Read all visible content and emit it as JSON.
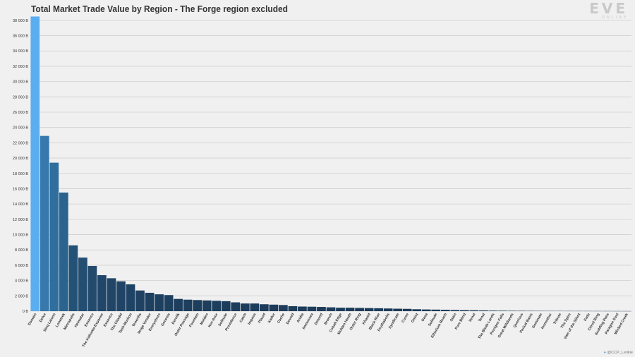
{
  "title": "Total Market Trade Value by Region - The Forge region excluded",
  "logo": {
    "main": "EVE",
    "sub": "ONLINE"
  },
  "credit": "@CCP_Lerikie",
  "chart_data": {
    "type": "bar",
    "title": "Total Market Trade Value by Region - The Forge region excluded",
    "xlabel": "",
    "ylabel": "",
    "ylim": [
      0,
      39000
    ],
    "yticks": [
      0,
      2000,
      4000,
      6000,
      8000,
      10000,
      12000,
      14000,
      16000,
      18000,
      20000,
      22000,
      24000,
      26000,
      28000,
      30000,
      32000,
      34000,
      36000,
      38000
    ],
    "ytick_labels": [
      "0 B",
      "2 000 B",
      "4 000 B",
      "6 000 B",
      "8 000 B",
      "10 000 B",
      "12 000 B",
      "14 000 B",
      "16 000 B",
      "18 000 B",
      "20 000 B",
      "22 000 B",
      "24 000 B",
      "26 000 B",
      "28 000 B",
      "30 000 B",
      "32 000 B",
      "34 000 B",
      "36 000 B",
      "38 000 B"
    ],
    "grid": true,
    "colors": {
      "max": "#5aaef0",
      "mid": "#2f6d9c",
      "min": "#1c3a58",
      "grid": "#cfcfcf",
      "tick_text": "#333333"
    },
    "categories": [
      "Domain",
      "Delve",
      "Sinq Laison",
      "Lonetrek",
      "Metropolis",
      "Heimatar",
      "Essence",
      "The Kalevala Expanse",
      "Essence",
      "The Citadel",
      "Tash-Murkon",
      "Tenerifis",
      "Verge Vendor",
      "Everyshore",
      "Genesis",
      "Derelik",
      "Outer Passage",
      "Fountain",
      "Molden",
      "Kor-Azor",
      "Solitude",
      "Providence",
      "Catch",
      "Impass",
      "Placid",
      "Kador",
      "Cache",
      "Devoid",
      "Aridia",
      "Immensea",
      "Detorid",
      "Branch",
      "Cobalt Edge",
      "Molden Heath",
      "Outer Ring",
      "Khanid",
      "Black Rise",
      "Feythabolis",
      "Syndicate",
      "Curse",
      "Omist",
      "Oasa",
      "Solitude",
      "Etherium Reach",
      "Stain",
      "Pure Blind",
      "Venal",
      "Tenal",
      "The Bleak Lands",
      "Perrigen Falls",
      "Great Wildlands",
      "Querious",
      "Period Basis",
      "Geminate",
      "Insmother",
      "Tribute",
      "The Spire",
      "Vale of the Silent",
      "Fade",
      "Cloud Ring",
      "Scalding Pass",
      "Paragon Soul",
      "Wicked Creek"
    ],
    "values": [
      38500,
      22900,
      19400,
      15500,
      8600,
      7000,
      5900,
      4700,
      4300,
      3900,
      3500,
      2700,
      2400,
      2200,
      2100,
      1600,
      1500,
      1450,
      1400,
      1350,
      1300,
      1150,
      1000,
      1000,
      900,
      850,
      800,
      650,
      600,
      580,
      550,
      500,
      450,
      450,
      420,
      400,
      380,
      350,
      320,
      300,
      250,
      220,
      200,
      180,
      150,
      130,
      110,
      90,
      70,
      60,
      50,
      45,
      40,
      35,
      30,
      28,
      25,
      22,
      20,
      18,
      15,
      12,
      10
    ]
  }
}
